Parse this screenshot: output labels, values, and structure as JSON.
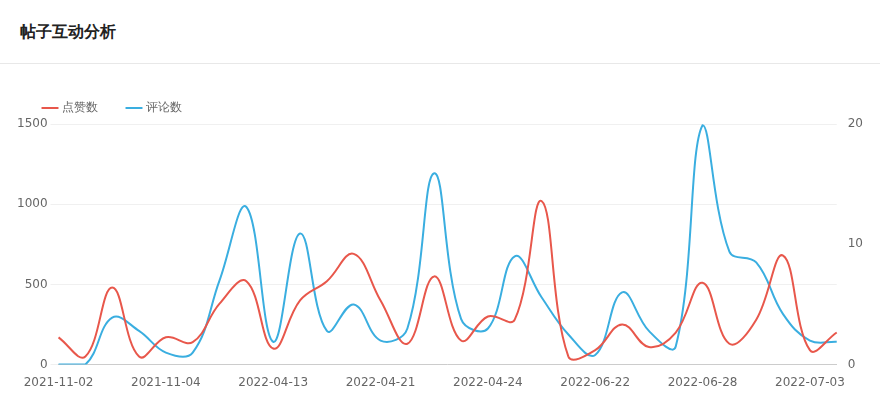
{
  "chart_data": {
    "type": "line",
    "title": "帖子互动分析",
    "categories": [
      "2021-11-02",
      null,
      null,
      null,
      "2021-11-04",
      null,
      null,
      null,
      "2022-04-13",
      null,
      null,
      null,
      "2022-04-21",
      null,
      null,
      null,
      "2022-04-24",
      null,
      null,
      null,
      "2022-06-22",
      null,
      null,
      null,
      "2022-06-28",
      null,
      null,
      null,
      "2022-07-03",
      null
    ],
    "series": [
      {
        "name": "点赞数",
        "color": "#e8574b",
        "axis": "y",
        "values": [
          170,
          50,
          480,
          50,
          170,
          140,
          380,
          520,
          100,
          400,
          520,
          690,
          400,
          130,
          550,
          150,
          300,
          280,
          1020,
          50,
          90,
          250,
          110,
          200,
          510,
          130,
          280,
          680,
          90,
          200
        ]
      },
      {
        "name": "评论数",
        "color": "#3aaee0",
        "axis": "y2",
        "values": [
          0,
          0,
          3.9,
          2.8,
          1,
          1,
          7,
          13.1,
          1.9,
          10.9,
          2.8,
          5,
          2,
          3,
          15.9,
          3.8,
          3,
          9,
          5.6,
          2.5,
          0.8,
          6,
          2.8,
          1.5,
          19.9,
          9.4,
          8.5,
          4.2,
          2,
          1.9
        ]
      }
    ],
    "ylim": [
      0,
      1500
    ],
    "yticks": [
      0,
      500,
      1000,
      1500
    ],
    "y2lim": [
      0,
      20
    ],
    "y2ticks": [
      0,
      10,
      20
    ],
    "grid": true,
    "legend": "top-left"
  }
}
